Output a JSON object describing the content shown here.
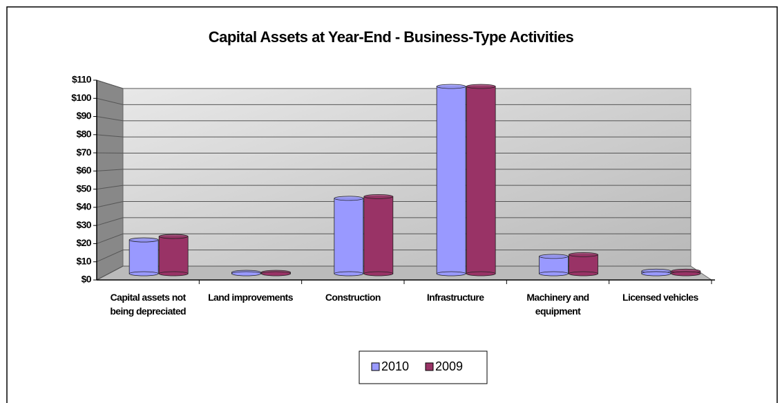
{
  "chart_data": {
    "type": "bar",
    "title": "Capital Assets at Year-End - Business-Type Activities",
    "categories": [
      "Capital assets not being depreciated",
      "Land improvements",
      "Construction",
      "Infrastructure",
      "Machinery and equipment",
      "Licensed vehicles"
    ],
    "series": [
      {
        "name": "2010",
        "color": "#9999ff",
        "values": [
          19.5,
          0.8,
          43.5,
          108,
          10,
          1.5
        ]
      },
      {
        "name": "2009",
        "color": "#993366",
        "values": [
          21.5,
          0.8,
          44.5,
          108,
          11,
          1.5
        ]
      }
    ],
    "ylim": [
      0,
      110
    ],
    "yticks": [
      {
        "value": 0,
        "label": "$0"
      },
      {
        "value": 10,
        "label": "$10"
      },
      {
        "value": 20,
        "label": "$20"
      },
      {
        "value": 30,
        "label": "$30"
      },
      {
        "value": 40,
        "label": "$40"
      },
      {
        "value": 50,
        "label": "$50"
      },
      {
        "value": 60,
        "label": "$60"
      },
      {
        "value": 70,
        "label": "$70"
      },
      {
        "value": 80,
        "label": "$80"
      },
      {
        "value": 90,
        "label": "$90"
      },
      {
        "value": 100,
        "label": "$100"
      },
      {
        "value": 110,
        "label": "$110"
      }
    ],
    "grid": true,
    "legend": "bottom"
  }
}
